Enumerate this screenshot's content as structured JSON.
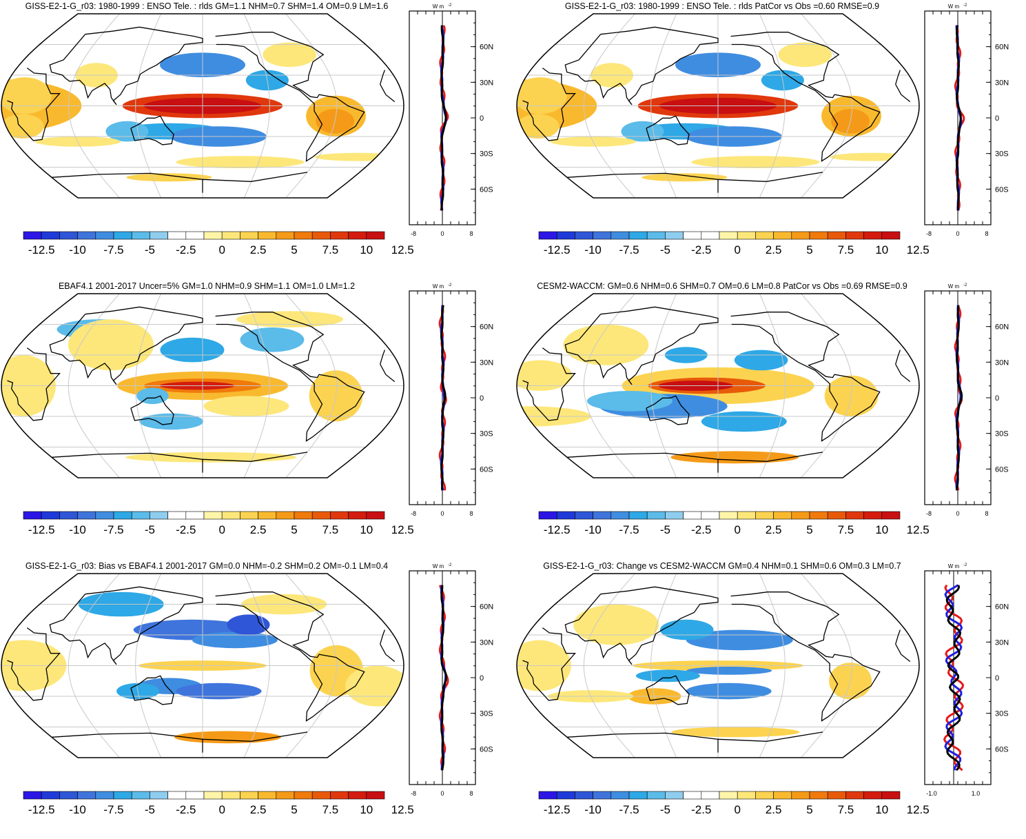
{
  "colorbar": {
    "labels": [
      "-12.5",
      "-10",
      "-7.5",
      "-5",
      "-2.5",
      "0",
      "2.5",
      "5",
      "7.5",
      "10",
      "12.5"
    ],
    "colors": [
      "#2b16e6",
      "#1f3ad8",
      "#2f56d6",
      "#3f74dc",
      "#3f8de0",
      "#2ea8e6",
      "#5bbbe9",
      "#8fcdee",
      "#ffffff",
      "#ffffff",
      "#fff5a8",
      "#fde77a",
      "#fcd350",
      "#f9b92e",
      "#f59a18",
      "#f07a0c",
      "#e85a0a",
      "#e0380c",
      "#d41c0e",
      "#c80f12"
    ]
  },
  "profile_axis": {
    "units": "W m",
    "units_sup": "-2",
    "lat_labels": [
      "60N",
      "30N",
      "0",
      "30S",
      "60S"
    ],
    "x_labels_std": [
      "-8",
      "0",
      "8"
    ],
    "x_labels_diff": [
      "-1.0",
      "1.0"
    ]
  },
  "panels": [
    {
      "id": "p1",
      "title": "GISS-E2-1-G_r03: 1980-1999 : ENSO Tele. : rlds GM=1.1 NHM=0.7 SHM=1.4 OM=0.9 LM=1.6",
      "pattern": "model"
    },
    {
      "id": "p2",
      "title": "GISS-E2-1-G_r03: 1980-1999 : ENSO Tele. : rlds PatCor vs Obs =0.60 RMSE=0.9",
      "pattern": "model"
    },
    {
      "id": "p3",
      "title": "EBAF4.1 2001-2017 Uncer=5% GM=1.0 NHM=0.9 SHM=1.1 OM=1.0 LM=1.2",
      "pattern": "obs"
    },
    {
      "id": "p4",
      "title": "CESM2-WACCM: GM=0.6 NHM=0.6 SHM=0.7 OM=0.6 LM=0.8 PatCor vs Obs =0.69 RMSE=0.9",
      "pattern": "ref"
    },
    {
      "id": "p5",
      "title": "GISS-E2-1-G_r03: Bias vs EBAF4.1 2001-2017 GM=0.0 NHM=-0.2 SHM=0.2 OM=-0.1 LM=0.4",
      "pattern": "bias"
    },
    {
      "id": "p6",
      "title": "GISS-E2-1-G_r03: Change vs CESM2-WACCM GM=0.4 NHM=0.1 SHM=0.6 OM=0.3 LM=0.7",
      "pattern": "change"
    }
  ]
}
